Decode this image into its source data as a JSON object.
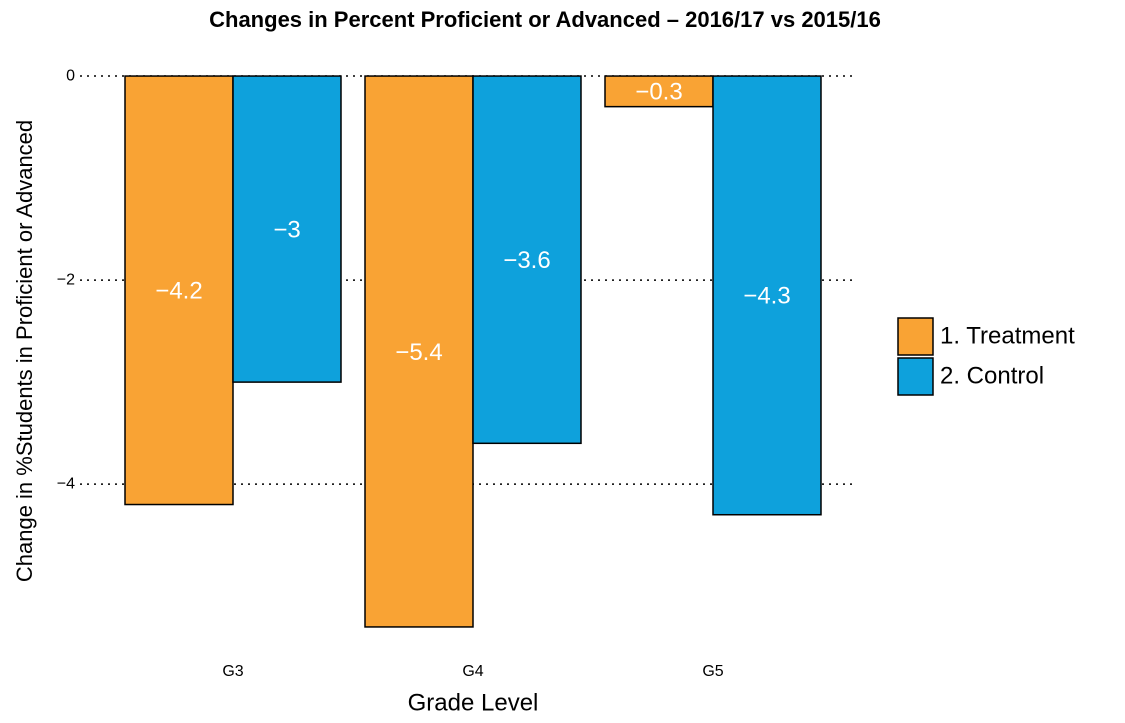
{
  "chart_data": {
    "type": "bar",
    "title": "Changes in Percent Proficient or Advanced – 2016/17 vs 2015/16",
    "x_label": "Grade Level",
    "y_label": "Change in %Students in Proficient or Advanced",
    "categories": [
      "G3",
      "G4",
      "G5"
    ],
    "series": [
      {
        "name": "1. Treatment",
        "color": "#f9a334",
        "values": [
          -4.2,
          -5.4,
          -0.3
        ],
        "value_labels": [
          "−4.2",
          "−5.4",
          "−0.3"
        ]
      },
      {
        "name": "2. Control",
        "color": "#0ea1dc",
        "values": [
          -3,
          -3.6,
          -4.3
        ],
        "value_labels": [
          "−3",
          "−3.6",
          "−4.3"
        ]
      }
    ],
    "ylim": [
      -5.67,
      0.27
    ],
    "yticks": [
      {
        "value": -4,
        "label": "−4"
      },
      {
        "value": -2,
        "label": "−2"
      },
      0
    ],
    "grid": true,
    "legend": "right"
  }
}
